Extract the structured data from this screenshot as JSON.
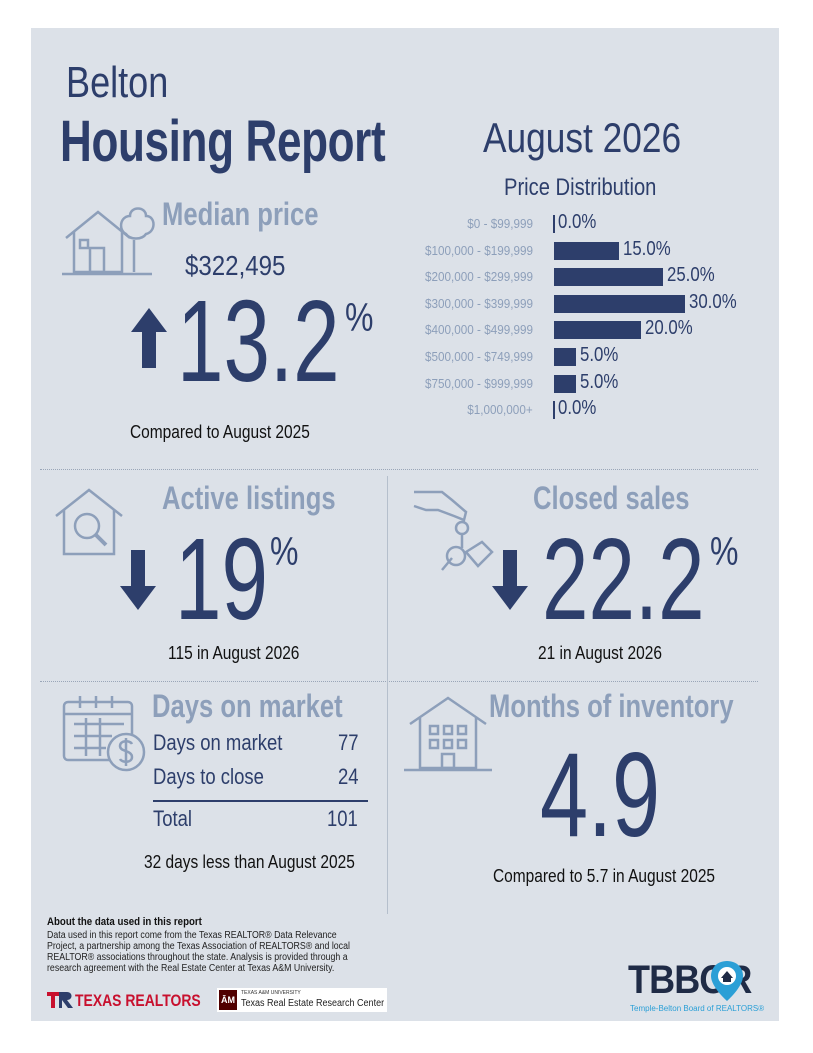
{
  "header": {
    "city": "Belton",
    "title": "Housing Report",
    "month": "August 2026"
  },
  "median_price": {
    "label": "Median price",
    "value": "$322,495",
    "change": "13.2",
    "unit": "%",
    "direction": "up",
    "caption": "Compared to August 2025"
  },
  "price_distribution": {
    "title": "Price Distribution",
    "rows": [
      {
        "range": "$0 - $99,999",
        "percent": 0.0,
        "label": "0.0%"
      },
      {
        "range": "$100,000 - $199,999",
        "percent": 15.0,
        "label": "15.0%"
      },
      {
        "range": "$200,000 - $299,999",
        "percent": 25.0,
        "label": "25.0%"
      },
      {
        "range": "$300,000 - $399,999",
        "percent": 30.0,
        "label": "30.0%"
      },
      {
        "range": "$400,000 - $499,999",
        "percent": 20.0,
        "label": "20.0%"
      },
      {
        "range": "$500,000 - $749,999",
        "percent": 5.0,
        "label": "5.0%"
      },
      {
        "range": "$750,000 - $999,999",
        "percent": 5.0,
        "label": "5.0%"
      },
      {
        "range": "$1,000,000+",
        "percent": 0.0,
        "label": "0.0%"
      }
    ]
  },
  "active_listings": {
    "label": "Active listings",
    "change": "19",
    "unit": "%",
    "direction": "down",
    "caption": "115 in August 2026"
  },
  "closed_sales": {
    "label": "Closed sales",
    "change": "22.2",
    "unit": "%",
    "direction": "down",
    "caption": "21 in August 2026"
  },
  "days_on_market": {
    "label": "Days on market",
    "rows": [
      {
        "name": "Days on market",
        "value": "77"
      },
      {
        "name": "Days to close",
        "value": "24"
      }
    ],
    "total_name": "Total",
    "total_value": "101",
    "caption": "32 days less than August 2025"
  },
  "months_inventory": {
    "label": "Months of inventory",
    "value": "4.9",
    "caption": "Compared to 5.7 in August 2025"
  },
  "footer": {
    "about_title": "About the data used in this report",
    "about_text": "Data used in this report come from the Texas REALTOR® Data Relevance Project, a partnership among the Texas Association of REALTORS® and local REALTOR® associations throughout the state. Analysis is provided through a research agreement with the Real Estate Center at Texas A&M University.",
    "texas_realtors_logo": "TEXAS REALTORS",
    "tamu_small": "TEXAS A&M UNIVERSITY",
    "tamu_center": "Texas Real Estate Research Center",
    "tbbor_logo": "TBBOR",
    "tbbor_full": "Temple-Belton Board of REALTORS®"
  },
  "colors": {
    "background": "#dce1e8",
    "navy": "#2d3e6b",
    "muted": "#8d9fba",
    "texas_red": "#c8102e",
    "tamu_maroon": "#500000",
    "tbbor_blue": "#2b9fd6"
  }
}
